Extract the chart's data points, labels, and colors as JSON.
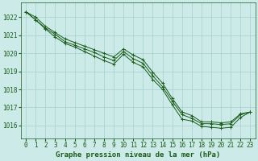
{
  "title": "Graphe pression niveau de la mer (hPa)",
  "background_color": "#cceae8",
  "grid_color": "#aad4d0",
  "line_color": "#1a5c1a",
  "xlim": [
    -0.5,
    23.5
  ],
  "ylim": [
    1015.3,
    1022.8
  ],
  "yticks": [
    1016,
    1017,
    1018,
    1019,
    1020,
    1021,
    1022
  ],
  "xticks": [
    0,
    1,
    2,
    3,
    4,
    5,
    6,
    7,
    8,
    9,
    10,
    11,
    12,
    13,
    14,
    15,
    16,
    17,
    18,
    19,
    20,
    21,
    22,
    23
  ],
  "series": [
    [
      1022.3,
      1021.85,
      1021.35,
      1020.9,
      1020.55,
      1020.35,
      1020.1,
      1019.85,
      1019.6,
      1019.4,
      1019.95,
      1019.5,
      1019.25,
      1018.55,
      1018.0,
      1017.15,
      1016.35,
      1016.25,
      1015.95,
      1015.9,
      1015.85,
      1015.9,
      1016.45,
      1016.75
    ],
    [
      1022.3,
      1021.85,
      1021.4,
      1021.05,
      1020.65,
      1020.45,
      1020.25,
      1020.05,
      1019.8,
      1019.6,
      1020.1,
      1019.7,
      1019.45,
      1018.75,
      1018.15,
      1017.35,
      1016.6,
      1016.4,
      1016.1,
      1016.1,
      1016.05,
      1016.1,
      1016.6,
      1016.75
    ],
    [
      1022.3,
      1022.0,
      1021.5,
      1021.15,
      1020.8,
      1020.6,
      1020.4,
      1020.2,
      1020.0,
      1019.8,
      1020.25,
      1019.9,
      1019.65,
      1018.95,
      1018.35,
      1017.5,
      1016.75,
      1016.55,
      1016.2,
      1016.2,
      1016.15,
      1016.2,
      1016.65,
      1016.75
    ]
  ],
  "marker_series": [
    0,
    1,
    2
  ],
  "tick_fontsize": 5.5,
  "title_fontsize": 6.5
}
